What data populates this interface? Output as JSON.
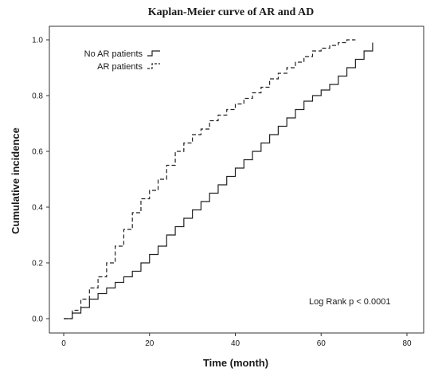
{
  "chart_data": {
    "type": "line",
    "title": "Kaplan-Meier curve of AR and AD",
    "xlabel": "Time (month)",
    "ylabel": "Cumulative incidence",
    "xlim": [
      0,
      80
    ],
    "ylim": [
      0,
      1
    ],
    "x_ticks": [
      "0",
      "20",
      "40",
      "60",
      "80"
    ],
    "y_ticks": [
      "0.0",
      "0.2",
      "0.4",
      "0.6",
      "0.8",
      "1.0"
    ],
    "grid": false,
    "legend_position": "top-left",
    "annotation": "Log Rank p < 0.0001",
    "series": [
      {
        "name": "No AR patients",
        "style": "solid",
        "x": [
          0,
          2,
          4,
          6,
          8,
          10,
          12,
          14,
          16,
          18,
          20,
          22,
          24,
          26,
          28,
          30,
          32,
          34,
          36,
          38,
          40,
          42,
          44,
          46,
          48,
          50,
          52,
          54,
          56,
          58,
          60,
          62,
          64,
          66,
          68,
          70,
          72
        ],
        "y": [
          0.0,
          0.02,
          0.04,
          0.07,
          0.09,
          0.11,
          0.13,
          0.15,
          0.17,
          0.2,
          0.23,
          0.26,
          0.3,
          0.33,
          0.36,
          0.39,
          0.42,
          0.45,
          0.48,
          0.51,
          0.54,
          0.57,
          0.6,
          0.63,
          0.66,
          0.69,
          0.72,
          0.75,
          0.78,
          0.8,
          0.82,
          0.84,
          0.87,
          0.9,
          0.93,
          0.96,
          0.99
        ]
      },
      {
        "name": "AR patients",
        "style": "dashed",
        "x": [
          0,
          2,
          4,
          6,
          8,
          10,
          12,
          14,
          16,
          18,
          20,
          22,
          24,
          26,
          28,
          30,
          32,
          34,
          36,
          38,
          40,
          42,
          44,
          46,
          48,
          50,
          52,
          54,
          56,
          58,
          60,
          62,
          64,
          66,
          68
        ],
        "y": [
          0.0,
          0.03,
          0.07,
          0.11,
          0.15,
          0.2,
          0.26,
          0.32,
          0.38,
          0.43,
          0.46,
          0.5,
          0.55,
          0.6,
          0.63,
          0.66,
          0.68,
          0.71,
          0.73,
          0.75,
          0.77,
          0.79,
          0.81,
          0.83,
          0.86,
          0.88,
          0.9,
          0.92,
          0.94,
          0.96,
          0.97,
          0.98,
          0.99,
          1.0,
          1.0
        ]
      }
    ]
  }
}
